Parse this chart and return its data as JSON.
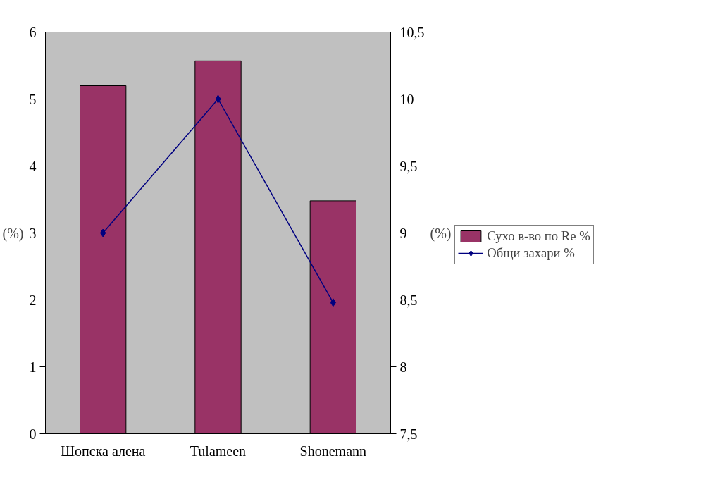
{
  "chart_data": {
    "type": "bar",
    "categories": [
      "Шопска алена",
      "Tulameen",
      "Shonemann"
    ],
    "ylabel": "(%)",
    "y2label": "(%)",
    "series": [
      {
        "name": "Сухо в-во по Re %",
        "color": "#993366",
        "values": [
          5.2,
          5.57,
          3.48
        ]
      },
      {
        "name": "Общи захари %",
        "color": "#000080",
        "type": "line",
        "axis": "y2",
        "marker": "diamond",
        "values": [
          9.0,
          10.0,
          8.48
        ]
      }
    ],
    "ylim": [
      0,
      6
    ],
    "yticks": [
      0,
      1,
      2,
      3,
      4,
      5,
      6
    ],
    "y2lim": [
      7.5,
      10.5
    ],
    "y2ticks": [
      {
        "value": 7.5,
        "label": "7,5"
      },
      8,
      {
        "value": 8.5,
        "label": "8,5"
      },
      9,
      {
        "value": 9.5,
        "label": "9,5"
      },
      10,
      {
        "value": 10.5,
        "label": "10,5"
      }
    ],
    "grid": false,
    "legend": "right"
  }
}
